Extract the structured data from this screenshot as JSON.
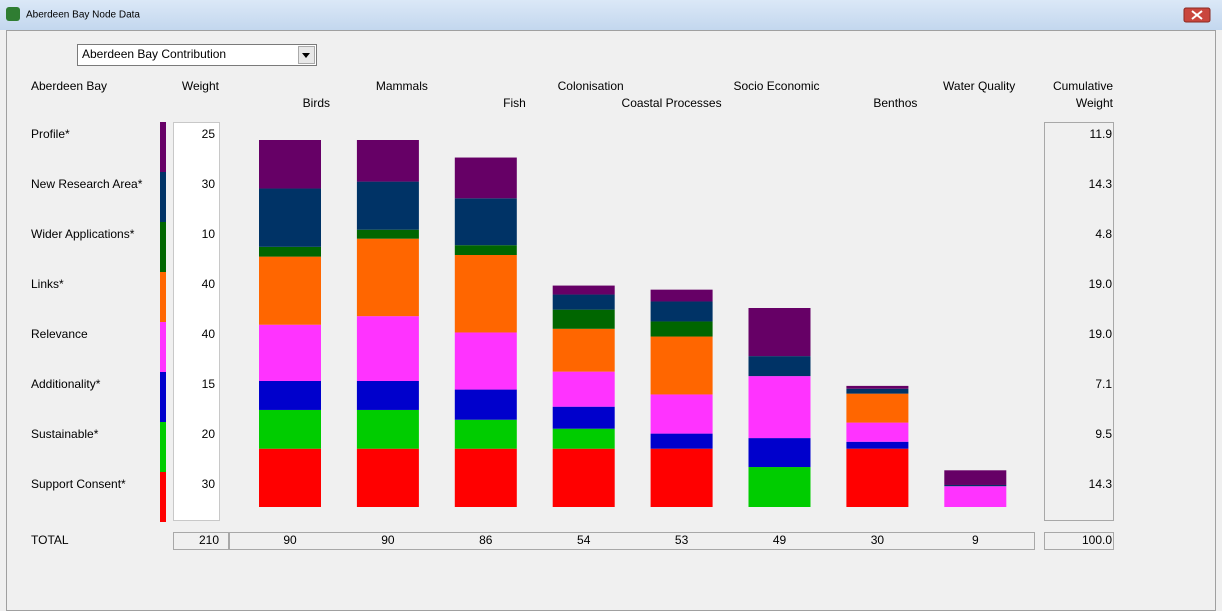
{
  "window_title": "Aberdeen Bay Node Data",
  "dropdown": "Aberdeen Bay Contribution",
  "chart_data": {
    "type": "bar",
    "stacked": true,
    "row_header": "Aberdeen Bay",
    "weight_header": "Weight",
    "cumulative_header": [
      "Cumulative",
      "Weight"
    ],
    "total_label": "TOTAL",
    "categories": [
      "Birds",
      "Mammals",
      "Fish",
      "Colonisation",
      "Coastal Processes",
      "Socio Economic",
      "Benthos",
      "Water Quality"
    ],
    "ylim": [
      0,
      90
    ],
    "series": [
      {
        "name": "Profile*",
        "color": "#660066",
        "weight": 25,
        "cumulative": 11.9,
        "values": [
          11.9,
          10.2,
          10.0,
          2.2,
          2.9,
          11.8,
          0.7,
          3.6
        ]
      },
      {
        "name": "New Research Area*",
        "color": "#003366",
        "weight": 30,
        "cumulative": 14.3,
        "values": [
          14.3,
          11.8,
          11.5,
          3.7,
          4.9,
          4.9,
          1.2,
          0.3
        ]
      },
      {
        "name": "Wider Applications*",
        "color": "#006600",
        "weight": 10,
        "cumulative": 4.8,
        "values": [
          2.4,
          2.2,
          2.4,
          4.7,
          3.7,
          0,
          0,
          0
        ]
      },
      {
        "name": "Links*",
        "color": "#ff6600",
        "weight": 40,
        "cumulative": {
          "value": 19,
          "label": "19.0"
        },
        "values": [
          16.7,
          19.0,
          19.0,
          10.5,
          14.2,
          0,
          7.1,
          0
        ]
      },
      {
        "name": "Relevance",
        "color": "#ff33ff",
        "weight": 40,
        "cumulative": {
          "value": 19,
          "label": "19.0"
        },
        "values": [
          13.8,
          15.9,
          14.0,
          8.6,
          9.6,
          15.2,
          4.7,
          5.1
        ]
      },
      {
        "name": "Additionality*",
        "color": "#0000cc",
        "weight": 15,
        "cumulative": 7.1,
        "values": [
          7.1,
          7.1,
          7.4,
          5.4,
          3.7,
          7.1,
          1.7,
          0
        ]
      },
      {
        "name": "Sustainable*",
        "color": "#00cc00",
        "weight": 20,
        "cumulative": 9.5,
        "values": [
          9.5,
          9.5,
          7.1,
          4.9,
          0,
          9.8,
          0,
          0
        ]
      },
      {
        "name": "Support Consent*",
        "color": "#ff0000",
        "weight": 30,
        "cumulative": 14.3,
        "values": [
          14.3,
          14.3,
          14.3,
          14.3,
          14.3,
          0,
          14.3,
          0
        ]
      }
    ],
    "weight_total": 210,
    "category_totals": [
      90,
      90,
      86,
      54,
      53,
      49,
      30,
      9
    ],
    "cumulative_total": {
      "value": 100,
      "label": "100.0"
    }
  }
}
